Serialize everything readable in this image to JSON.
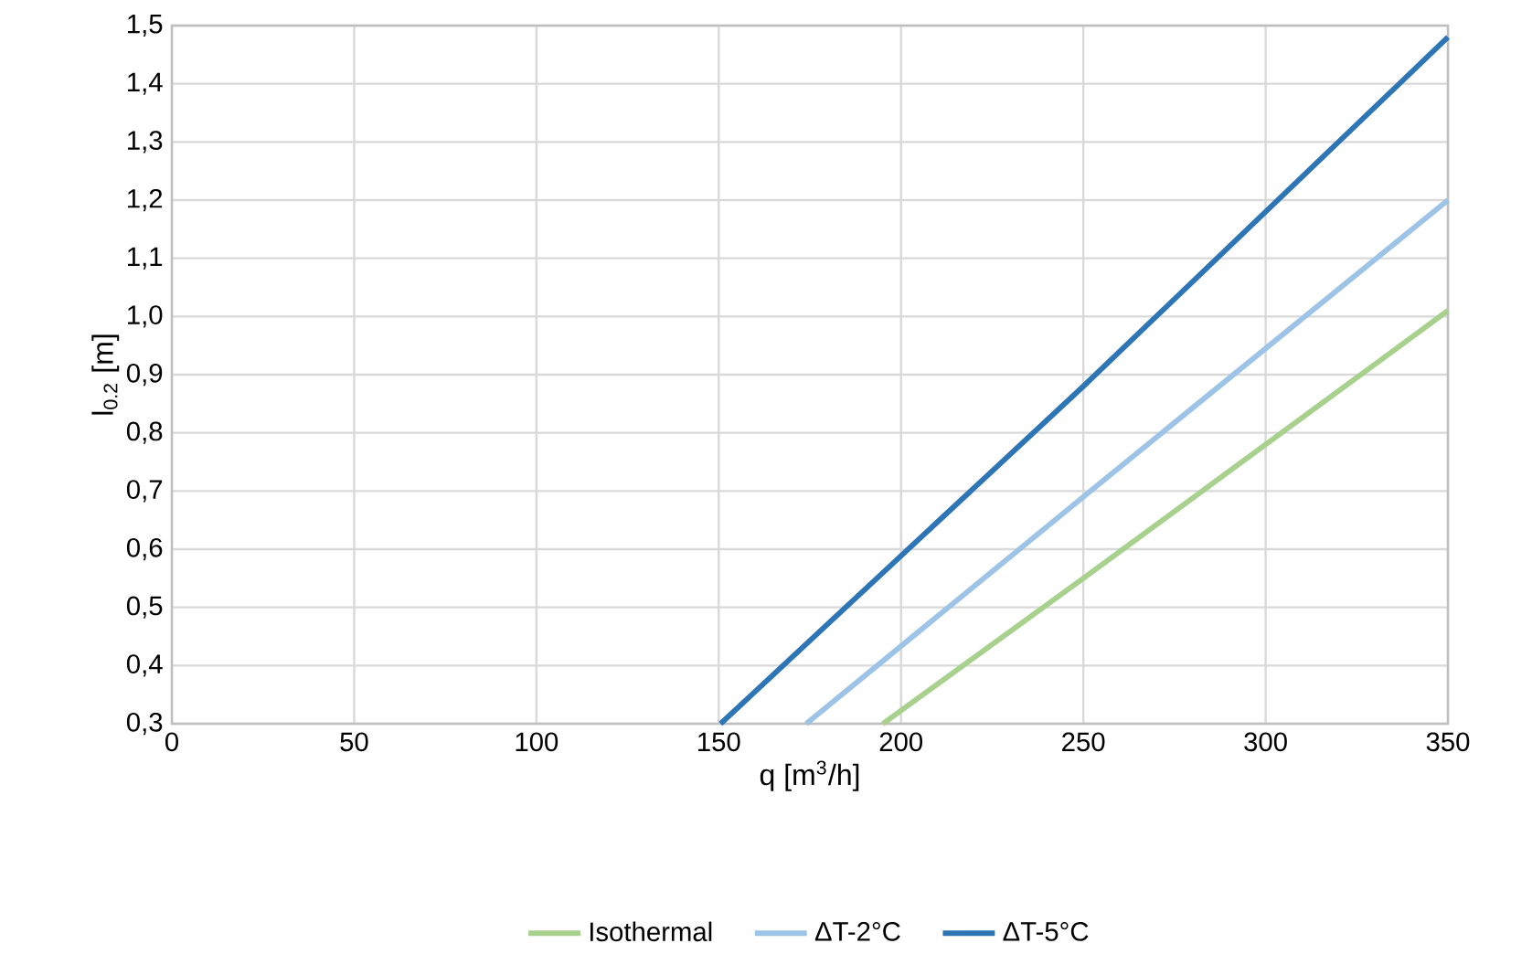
{
  "chart_data": {
    "type": "line",
    "xlabel": "q [m$^{3}$/h]",
    "ylabel": "l$_{0.2}$ [m]",
    "xlim": [
      0,
      350
    ],
    "ylim": [
      0.3,
      1.5
    ],
    "xticks": [
      0,
      50,
      100,
      150,
      200,
      250,
      300,
      350
    ],
    "yticks": [
      {
        "value": 0.3,
        "label": "0,3"
      },
      {
        "value": 0.4,
        "label": "0,4"
      },
      {
        "value": 0.5,
        "label": "0,5"
      },
      {
        "value": 0.6,
        "label": "0,6"
      },
      {
        "value": 0.7,
        "label": "0,7"
      },
      {
        "value": 0.8,
        "label": "0,8"
      },
      {
        "value": 0.9,
        "label": "0,9"
      },
      {
        "value": 1.0,
        "label": "1,0"
      },
      {
        "value": 1.1,
        "label": "1,1"
      },
      {
        "value": 1.2,
        "label": "1,2"
      },
      {
        "value": 1.3,
        "label": "1,3"
      },
      {
        "value": 1.4,
        "label": "1,4"
      },
      {
        "value": 1.5,
        "label": "1,5"
      }
    ],
    "grid": true,
    "legend": "bottom",
    "line_style": "solid",
    "series": [
      {
        "name": "Isothermal",
        "color": "#a9d18e",
        "x": [
          195,
          250,
          350
        ],
        "values": [
          0.3,
          0.55,
          1.01
        ]
      },
      {
        "name": "ΔT-2°C",
        "color": "#9dc3e6",
        "x": [
          174,
          250,
          350
        ],
        "values": [
          0.3,
          0.69,
          1.2
        ]
      },
      {
        "name": "ΔT-5°C",
        "color": "#2e75b6",
        "x": [
          150.5,
          250,
          350
        ],
        "values": [
          0.3,
          0.88,
          1.48
        ]
      }
    ]
  }
}
